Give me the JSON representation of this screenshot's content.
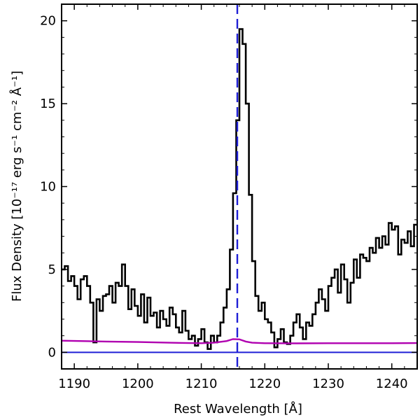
{
  "chart_data": {
    "type": "line",
    "xlabel": "Rest Wavelength [Å]",
    "ylabel": "Flux Density [10⁻¹⁷ erg s⁻¹ cm⁻² Å⁻¹]",
    "xlim": [
      1188,
      1244
    ],
    "ylim": [
      -1,
      21
    ],
    "x_ticks": [
      1190,
      1200,
      1210,
      1220,
      1230,
      1240
    ],
    "y_ticks": [
      0,
      5,
      10,
      15,
      20
    ],
    "grid": false,
    "reference_line": {
      "x": 1215.67,
      "color": "#1f1fd6",
      "style": "dashed"
    },
    "zero_line": {
      "y": 0,
      "color": "#1f1fd6"
    },
    "series": [
      {
        "color": "#000000",
        "style": "step",
        "x": [
          1188,
          1188.5,
          1189,
          1189.5,
          1190,
          1190.5,
          1191,
          1191.5,
          1192,
          1192.5,
          1193,
          1193.5,
          1194,
          1194.5,
          1195,
          1195.5,
          1196,
          1196.5,
          1197,
          1197.5,
          1198,
          1198.5,
          1199,
          1199.5,
          1200,
          1200.5,
          1201,
          1201.5,
          1202,
          1202.5,
          1203,
          1203.5,
          1204,
          1204.5,
          1205,
          1205.5,
          1206,
          1206.5,
          1207,
          1207.5,
          1208,
          1208.5,
          1209,
          1209.5,
          1210,
          1210.5,
          1211,
          1211.5,
          1212,
          1212.5,
          1213,
          1213.5,
          1214,
          1214.5,
          1215,
          1215.5,
          1216,
          1216.5,
          1217,
          1217.5,
          1218,
          1218.5,
          1219,
          1219.5,
          1220,
          1220.5,
          1221,
          1221.5,
          1222,
          1222.5,
          1223,
          1223.5,
          1224,
          1224.5,
          1225,
          1225.5,
          1226,
          1226.5,
          1227,
          1227.5,
          1228,
          1228.5,
          1229,
          1229.5,
          1230,
          1230.5,
          1231,
          1231.5,
          1232,
          1232.5,
          1233,
          1233.5,
          1234,
          1234.5,
          1235,
          1235.5,
          1236,
          1236.5,
          1237,
          1237.5,
          1238,
          1238.5,
          1239,
          1239.5,
          1240,
          1240.5,
          1241,
          1241.5,
          1242,
          1242.5,
          1243,
          1243.5
        ],
        "y": [
          5.0,
          5.2,
          4.3,
          4.6,
          4.0,
          3.2,
          4.4,
          4.6,
          4.0,
          3.0,
          0.6,
          3.2,
          2.5,
          3.4,
          3.5,
          4.0,
          3.0,
          4.2,
          4.0,
          5.3,
          4.0,
          2.6,
          3.8,
          2.8,
          2.2,
          3.5,
          1.8,
          3.3,
          2.2,
          2.4,
          1.5,
          2.5,
          2.0,
          1.6,
          2.7,
          2.3,
          1.5,
          1.2,
          2.5,
          1.3,
          0.8,
          1.0,
          0.4,
          0.8,
          1.4,
          0.6,
          0.2,
          1.0,
          0.6,
          1.0,
          1.8,
          2.7,
          3.8,
          6.2,
          9.6,
          14.0,
          19.5,
          18.6,
          15.0,
          9.5,
          5.5,
          3.4,
          2.5,
          3.0,
          2.0,
          1.8,
          1.2,
          0.3,
          0.8,
          1.4,
          0.6,
          0.5,
          1.0,
          1.8,
          2.3,
          1.5,
          0.8,
          1.8,
          1.6,
          2.3,
          3.0,
          3.8,
          3.2,
          2.5,
          4.0,
          4.5,
          5.0,
          3.6,
          5.3,
          4.4,
          3.0,
          4.2,
          5.6,
          4.5,
          5.9,
          5.7,
          5.5,
          6.3,
          6.0,
          6.9,
          6.3,
          7.0,
          6.5,
          7.8,
          7.4,
          7.6,
          5.9,
          6.8,
          6.6,
          7.3,
          6.4,
          7.7
        ]
      },
      {
        "color": "#b000b0",
        "style": "line",
        "x": [
          1188,
          1195,
          1200,
          1205,
          1210,
          1212,
          1214,
          1215,
          1216,
          1217,
          1218,
          1220,
          1225,
          1230,
          1235,
          1240,
          1244
        ],
        "y": [
          0.7,
          0.65,
          0.62,
          0.58,
          0.55,
          0.58,
          0.68,
          0.8,
          0.78,
          0.65,
          0.58,
          0.55,
          0.54,
          0.55,
          0.55,
          0.55,
          0.56
        ]
      }
    ]
  }
}
